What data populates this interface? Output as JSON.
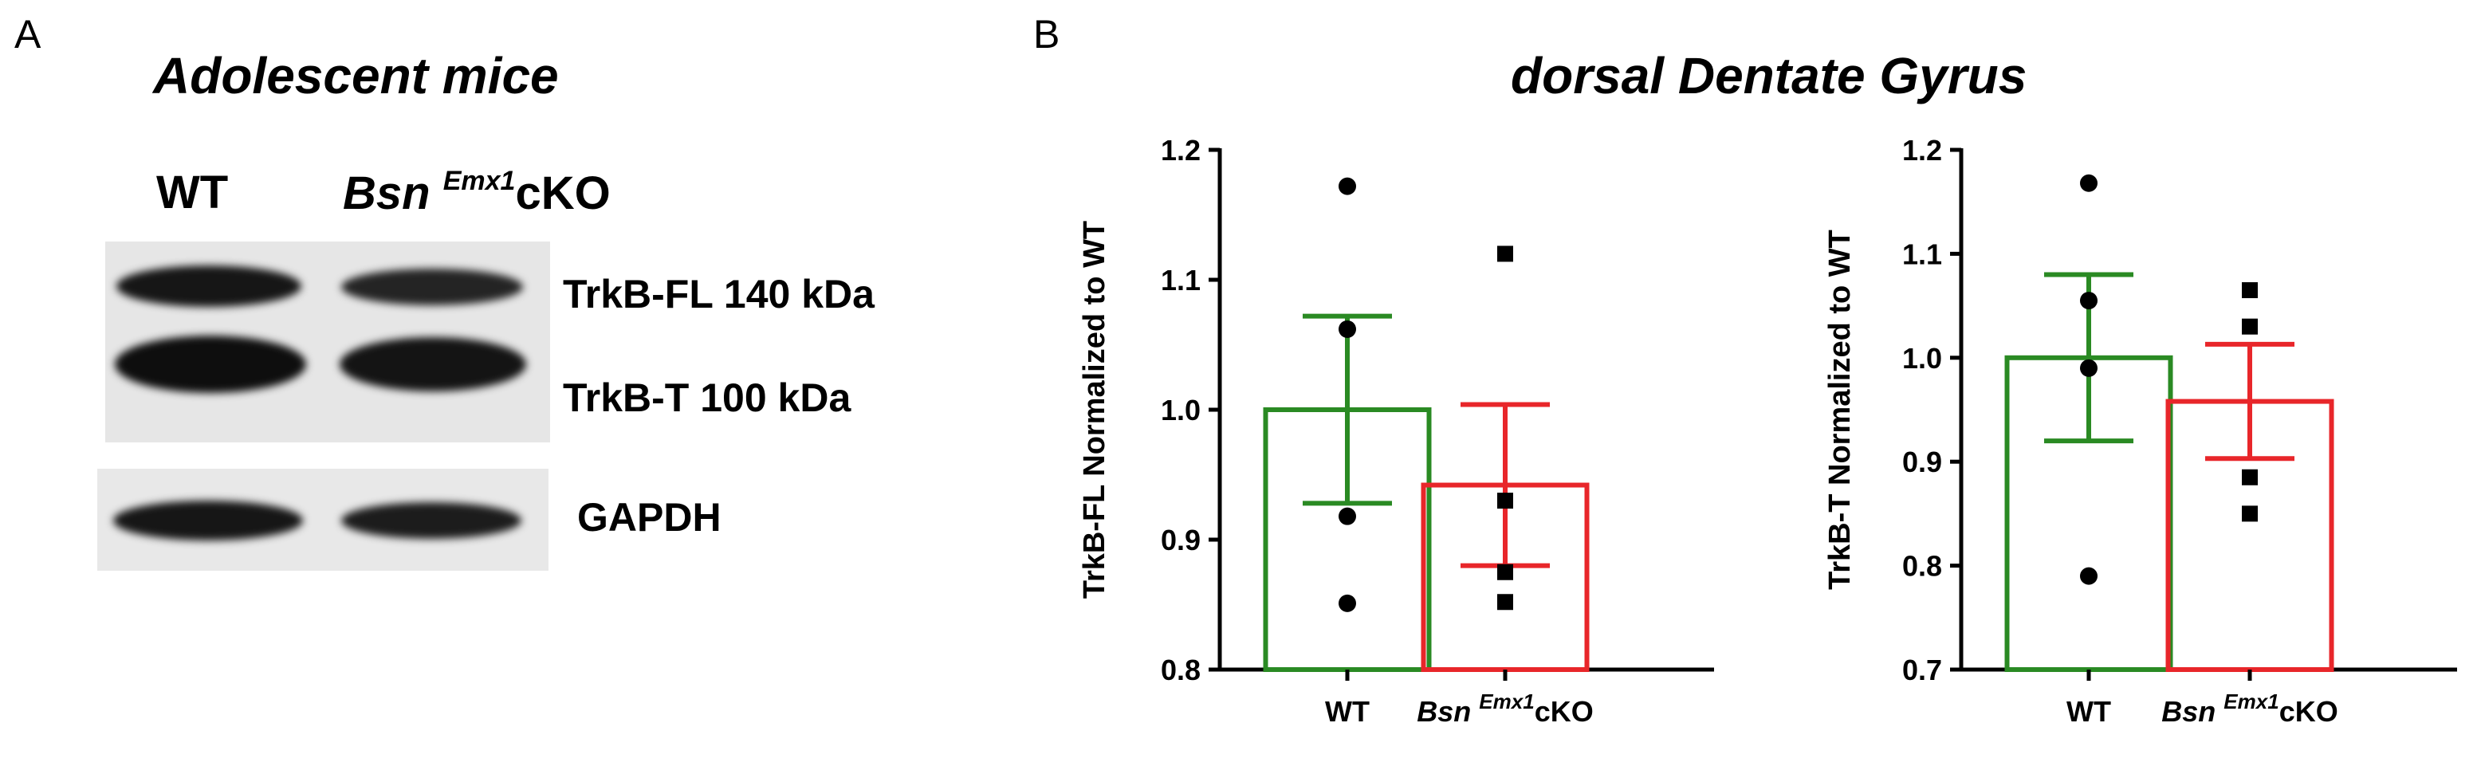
{
  "panel_a": {
    "letter": "A",
    "title": "Adolescent mice",
    "lanes": {
      "wt": "WT",
      "cko_main": "Bsn",
      "cko_sup": "Emx1",
      "cko_suffix": "cKO"
    },
    "bands": {
      "trkb_fl": "TrkB-FL 140 kDa",
      "trkb_t": "TrkB-T 100 kDa",
      "gapdh": "GAPDH"
    }
  },
  "panel_b": {
    "letter": "B",
    "title": "dorsal Dentate Gyrus"
  },
  "colors": {
    "wt": "#2a8a23",
    "cko": "#e8262a",
    "point": "#000000"
  },
  "chart_data": [
    {
      "type": "bar",
      "title": "",
      "ylabel": "TrkB-FL Normalized to WT",
      "xlabel": "",
      "categories": [
        "WT",
        "Bsn Emx1 cKO"
      ],
      "cat_main": [
        "WT",
        "Bsn "
      ],
      "cat_sup": [
        "",
        "Emx1"
      ],
      "cat_suffix": [
        "",
        "cKO"
      ],
      "means": [
        1.0,
        0.942
      ],
      "sem": [
        0.072,
        0.062
      ],
      "points": [
        [
          1.172,
          1.062,
          0.918,
          0.851
        ],
        [
          1.12,
          0.93,
          0.875,
          0.852
        ]
      ],
      "markers": [
        "circle",
        "square"
      ],
      "ylim": [
        0.8,
        1.2
      ],
      "yticks": [
        0.8,
        0.9,
        1.0,
        1.1,
        1.2
      ],
      "ytick_labels": [
        "0.8",
        "0.9",
        "1.0",
        "1.1",
        "1.2"
      ]
    },
    {
      "type": "bar",
      "title": "",
      "ylabel": "TrkB-T Normalized to WT",
      "xlabel": "",
      "categories": [
        "WT",
        "Bsn Emx1 cKO"
      ],
      "cat_main": [
        "WT",
        "Bsn "
      ],
      "cat_sup": [
        "",
        "Emx1"
      ],
      "cat_suffix": [
        "",
        "cKO"
      ],
      "means": [
        1.0,
        0.958
      ],
      "sem": [
        0.08,
        0.055
      ],
      "points": [
        [
          1.168,
          1.055,
          0.99,
          0.79
        ],
        [
          1.065,
          1.03,
          0.885,
          0.85
        ]
      ],
      "markers": [
        "circle",
        "square"
      ],
      "ylim": [
        0.7,
        1.2
      ],
      "yticks": [
        0.7,
        0.8,
        0.9,
        1.0,
        1.1,
        1.2
      ],
      "ytick_labels": [
        "0.7",
        "0.8",
        "0.9",
        "1.0",
        "1.1",
        "1.2"
      ]
    }
  ]
}
